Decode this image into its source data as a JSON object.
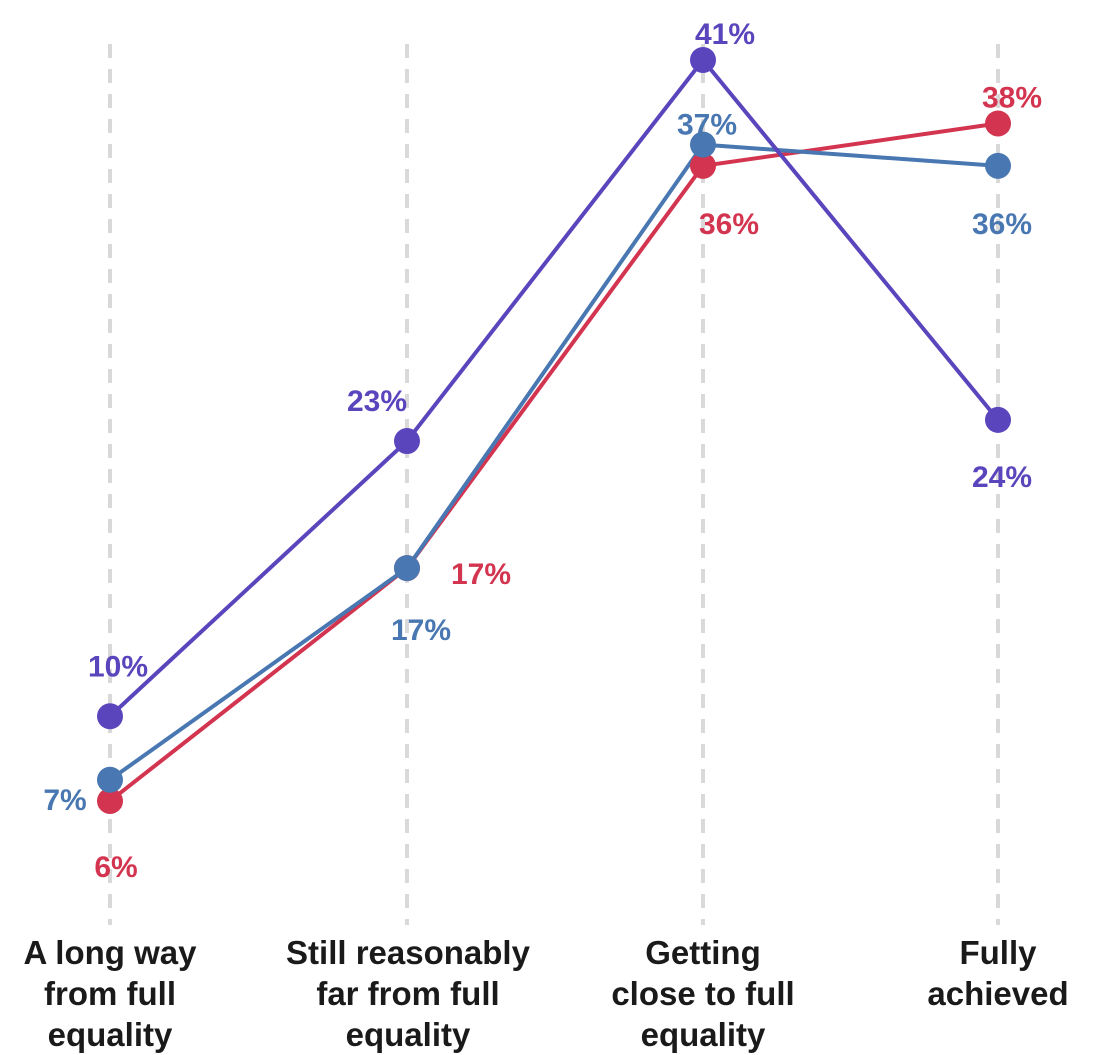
{
  "chart_data": {
    "type": "line",
    "categories": [
      [
        "A long way",
        "from full",
        "equality"
      ],
      [
        "Still reasonably",
        "far from full",
        "equality"
      ],
      [
        "Getting",
        "close to full",
        "equality"
      ],
      [
        "Fully",
        "achieved"
      ]
    ],
    "series": [
      {
        "values": [
          10,
          23,
          41,
          24
        ],
        "labels": [
          "10%",
          "23%",
          "41%",
          "24%"
        ],
        "color": "#5b45bd"
      },
      {
        "values": [
          6,
          17,
          36,
          38
        ],
        "labels": [
          "6%",
          "17%",
          "36%",
          "38%"
        ],
        "color": "#d3344f"
      },
      {
        "values": [
          7,
          17,
          37,
          36
        ],
        "labels": [
          "7%",
          "17%",
          "37%",
          "36%"
        ],
        "color": "#4877b2"
      }
    ],
    "ylim": [
      0,
      41
    ],
    "grid": "vertical-dashed",
    "legend": "none"
  }
}
